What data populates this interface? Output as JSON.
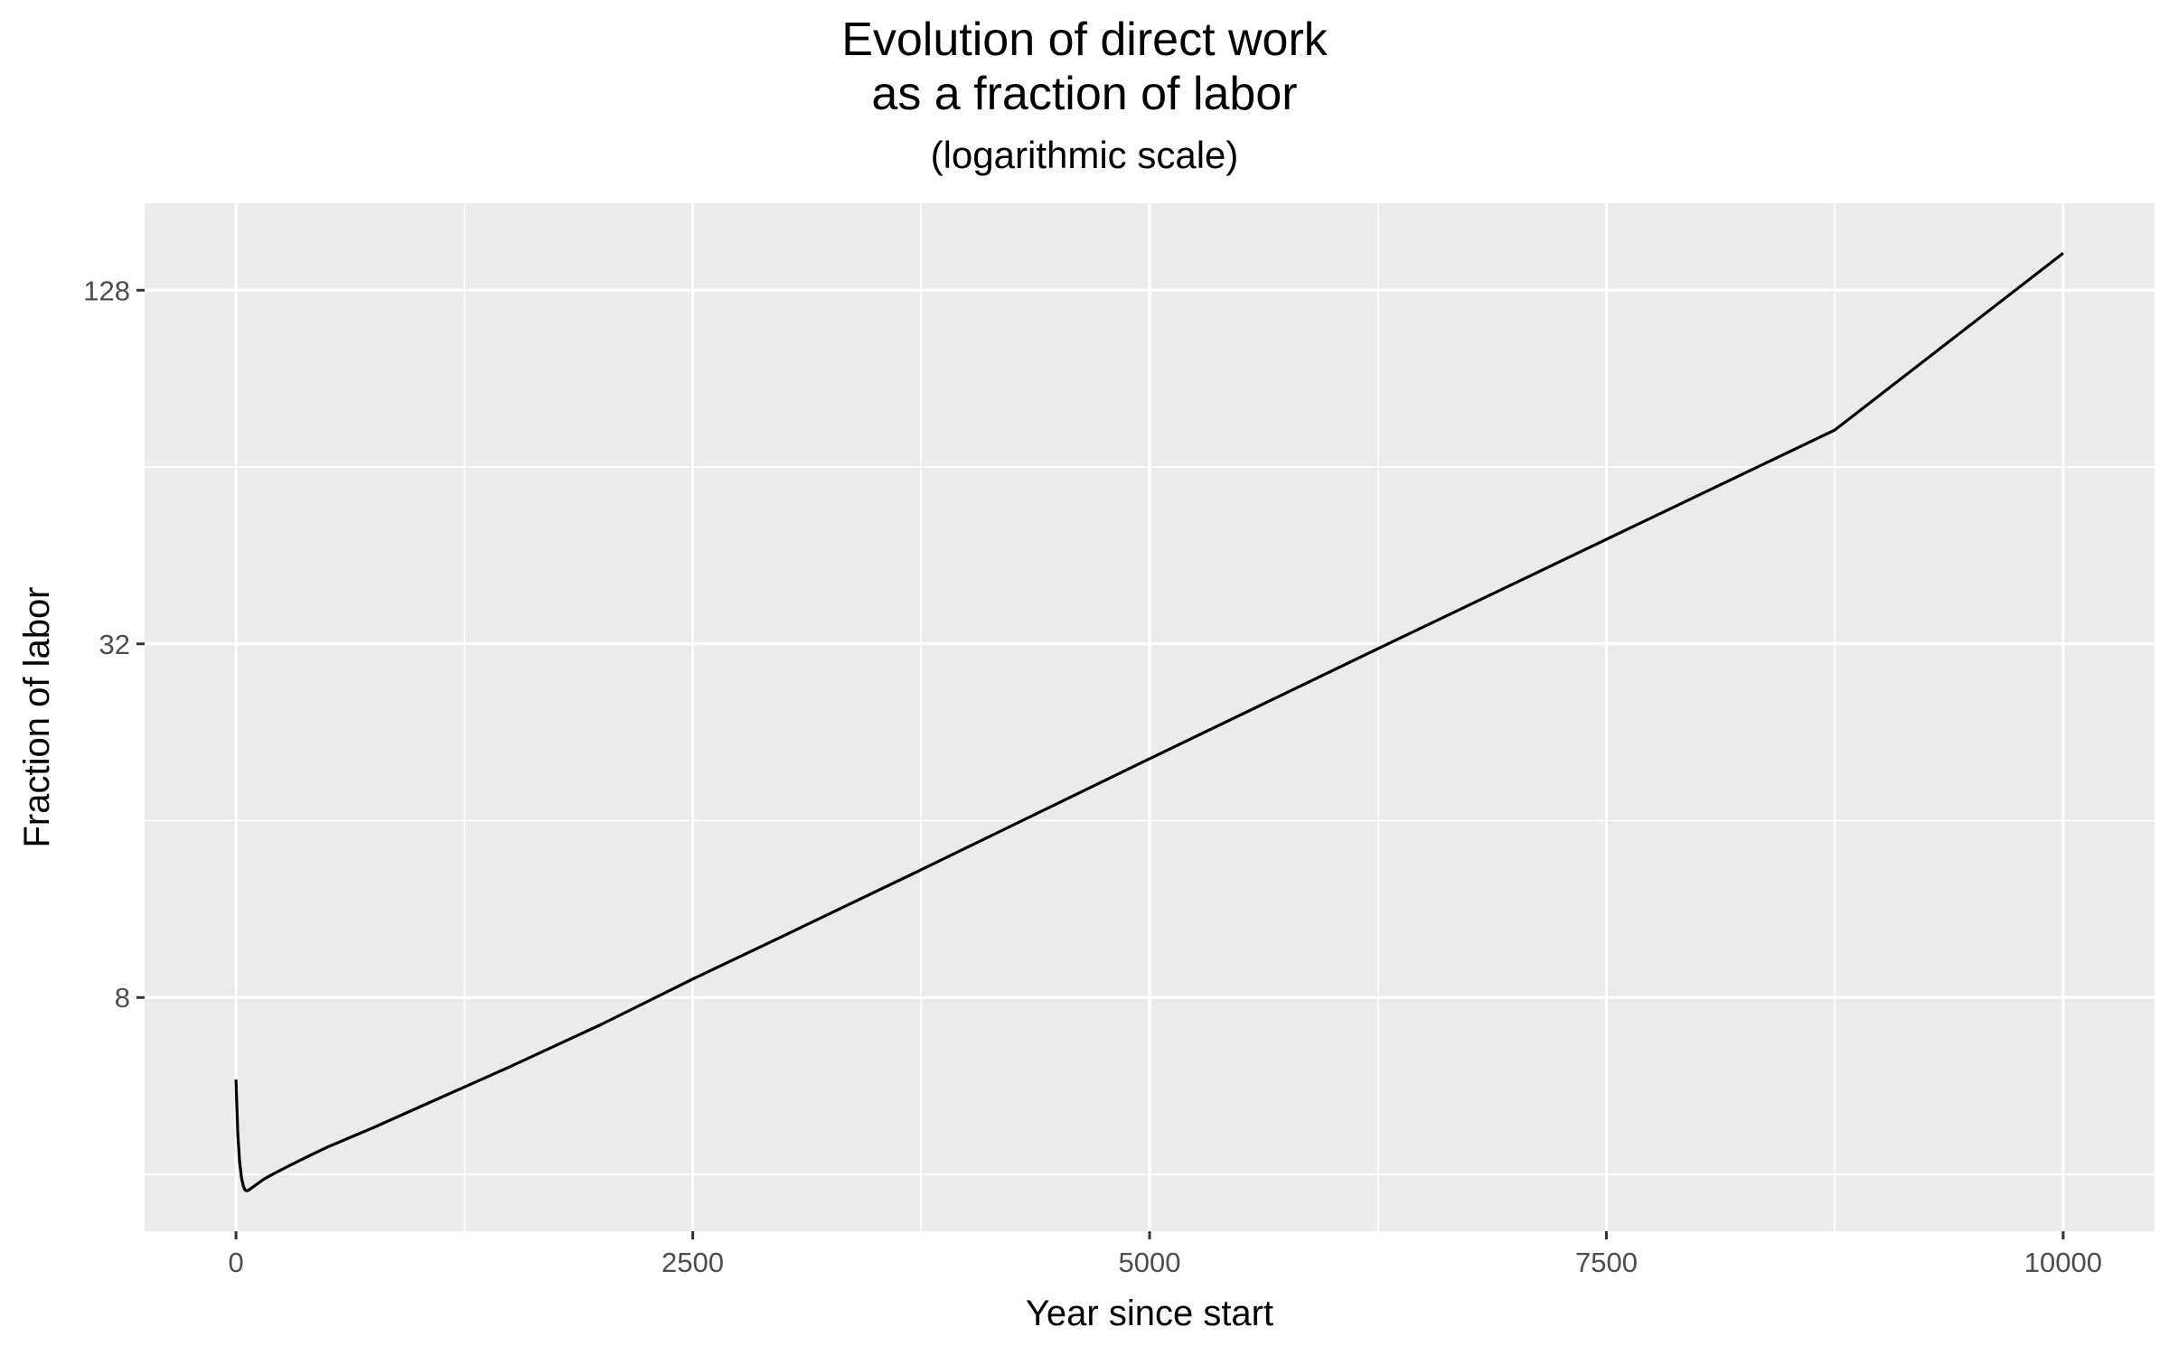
{
  "chart_data": {
    "type": "line",
    "title_line1": "Evolution of direct work",
    "title_line2": "as a fraction of labor",
    "subtitle": "(logarithmic scale)",
    "xlabel": "Year since start",
    "ylabel": "Fraction of labor",
    "y_scale": "log2",
    "xlim": [
      -500,
      10500
    ],
    "ylim": [
      3.2,
      180
    ],
    "x_ticks": [
      0,
      2500,
      5000,
      7500,
      10000
    ],
    "x_tick_labels": [
      "0",
      "2500",
      "5000",
      "7500",
      "10000"
    ],
    "y_ticks": [
      8,
      32,
      128
    ],
    "y_tick_labels": [
      "8",
      "32",
      "128"
    ],
    "y_minor_ticks": [
      4,
      16,
      64
    ],
    "grid": true,
    "background": "#ebebeb",
    "grid_color": "#ffffff",
    "line_color": "#000000",
    "series": [
      {
        "x": [
          0,
          10,
          20,
          30,
          40,
          50,
          60,
          70,
          80,
          100,
          150,
          200,
          300,
          400,
          500,
          750,
          1000,
          1500,
          2000,
          2500,
          3000,
          3750,
          5000,
          6250,
          7500,
          8750,
          10000
        ],
        "y": [
          5.8,
          4.7,
          4.2,
          3.95,
          3.82,
          3.76,
          3.75,
          3.76,
          3.78,
          3.82,
          3.92,
          4.0,
          4.15,
          4.3,
          4.45,
          4.8,
          5.2,
          6.1,
          7.2,
          8.6,
          10.2,
          13.2,
          20.4,
          31.4,
          48.2,
          74.0,
          148.0
        ]
      }
    ]
  }
}
